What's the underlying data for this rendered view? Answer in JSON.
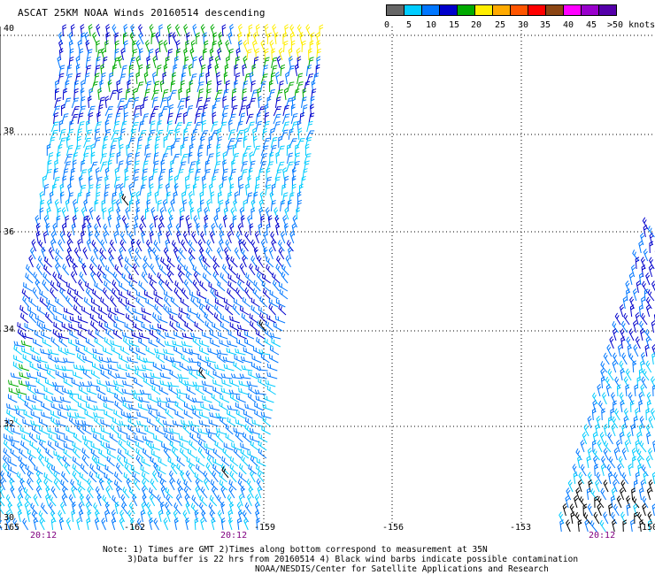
{
  "title": "ASCAT 25KM NOAA Winds 20160514 descending",
  "colorbar": {
    "ticks": [
      "0",
      "5",
      "10",
      "15",
      "20",
      "25",
      "30",
      "35",
      "40",
      "45",
      ">50 knots"
    ],
    "colors": [
      "#666666",
      "#00ccff",
      "#0077ff",
      "#0000cc",
      "#00aa00",
      "#ffee00",
      "#ffaa00",
      "#ff5500",
      "#ff0000",
      "#8b4513",
      "#ff00ff",
      "#9900cc",
      "#5500aa"
    ]
  },
  "map": {
    "lat_ticks": [
      "40",
      "38",
      "36",
      "34",
      "32",
      "30"
    ],
    "lon_ticks": [
      "-165",
      "-162",
      "-159",
      "-156",
      "-153",
      "-150"
    ],
    "time_labels": [
      "20:12",
      "20:12",
      "20:12"
    ],
    "grid": true
  },
  "notes": {
    "line1": "Note: 1) Times are GMT 2)Times along bottom correspond to measurement at 35N",
    "line2": "3)Data buffer is 22 hrs from 20160514 4) Black wind barbs indicate possible contamination",
    "line3": "NOAA/NESDIS/Center for Satellite Applications and Research"
  }
}
